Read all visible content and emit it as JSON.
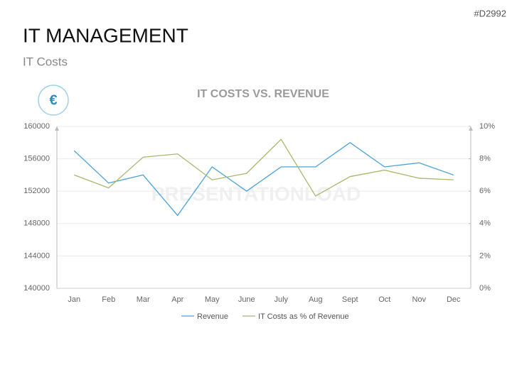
{
  "page": {
    "id": "#D2992",
    "title": "IT MANAGEMENT",
    "subtitle": "IT Costs",
    "icon": "€",
    "watermark": "PRESENTATIONLOAD"
  },
  "chart_data": {
    "type": "line",
    "title": "IT COSTS VS. REVENUE",
    "categories": [
      "Jan",
      "Feb",
      "Mar",
      "Apr",
      "May",
      "June",
      "July",
      "Aug",
      "Sept",
      "Oct",
      "Nov",
      "Dec"
    ],
    "series": [
      {
        "name": "Revenue",
        "color": "#4aa3d6",
        "values": [
          157000,
          153000,
          154000,
          149000,
          155000,
          152000,
          155000,
          155000,
          158000,
          155000,
          155500,
          154000
        ]
      },
      {
        "name": "IT Costs as % of Revenue",
        "color": "#a8b86e",
        "axis": "y2",
        "values": [
          7.0,
          6.2,
          8.1,
          8.3,
          6.7,
          7.1,
          9.2,
          5.7,
          6.9,
          7.3,
          6.8,
          6.7
        ]
      }
    ],
    "ylim": [
      140000,
      160000
    ],
    "yticks": [
      140000,
      144000,
      148000,
      152000,
      156000,
      160000
    ],
    "y2lim": [
      0,
      10
    ],
    "y2ticks": [
      {
        "value": 0,
        "label": "0%"
      },
      {
        "value": 2,
        "label": "2%"
      },
      {
        "value": 4,
        "label": "4%"
      },
      {
        "value": 6,
        "label": "6%"
      },
      {
        "value": 8,
        "label": "8%"
      },
      {
        "value": 10,
        "label": "10%"
      }
    ],
    "grid": true,
    "legend": "bottom"
  }
}
